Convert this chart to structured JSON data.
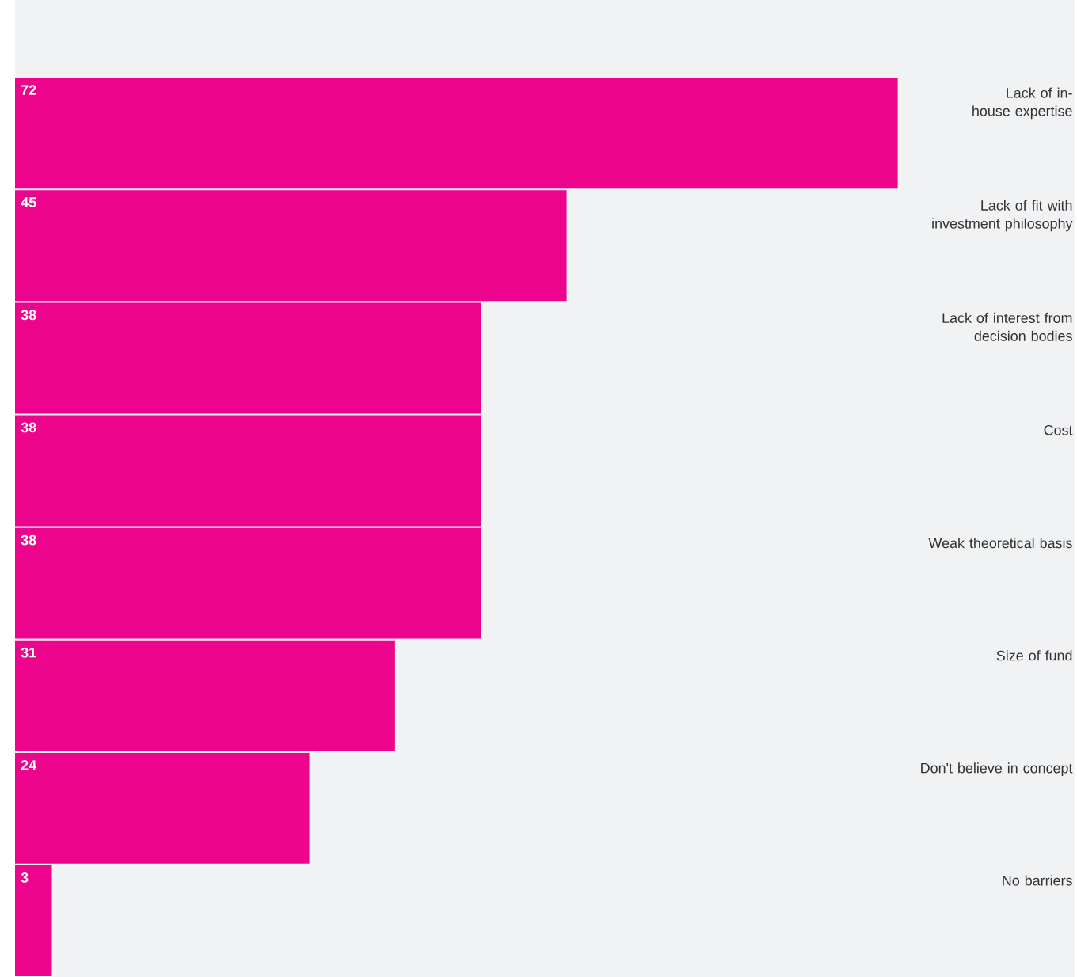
{
  "chart_data": {
    "type": "bar",
    "orientation": "horizontal",
    "categories": [
      "Lack of in-house expertise",
      "Lack of fit with investment philosophy",
      "Lack of interest from decision bodies",
      "Cost",
      "Weak theoretical basis",
      "Size of fund",
      "Don't believe in concept",
      "No barriers"
    ],
    "values": [
      72,
      45,
      38,
      38,
      38,
      31,
      24,
      3
    ],
    "color": "#ec058c",
    "xlim": [
      0,
      86.5
    ],
    "data_labels": true
  }
}
